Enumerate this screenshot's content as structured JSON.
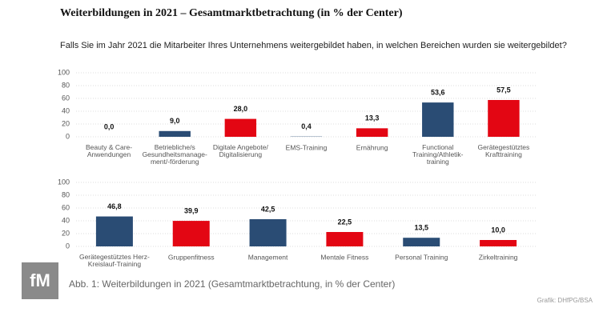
{
  "header": {
    "title": "Weiterbildungen in 2021 – Gesamtmarktbetrachtung (in % der Center)",
    "subtitle": "Falls Sie im Jahr 2021 die Mitarbeiter Ihres Unternehmens weitergebildet haben, in welchen Bereichen wurden sie weitergebildet?"
  },
  "footer": {
    "logo": "fM",
    "caption": "Abb. 1: Weiterbildungen in 2021 (Gesamtmarktbetrachtung, in % der Center)",
    "credit": "Grafik: DHfPG/BSA"
  },
  "chart_data": [
    {
      "type": "bar",
      "categories": [
        "Beauty & Care-\nAnwendungen",
        "Betriebliche/s\nGesundheitsmanage-\nment/-förderung",
        "Digitale Angebote/\nDigitalisierung",
        "EMS-Training",
        "Ernährung",
        "Functional\nTraining/Athletik-\ntraining",
        "Gerätegestütztes\nKrafttraining"
      ],
      "values": [
        0.0,
        9.0,
        28.0,
        0.4,
        13.3,
        53.6,
        57.5
      ],
      "value_labels": [
        "0,0",
        "9,0",
        "28,0",
        "0,4",
        "13,3",
        "53,6",
        "57,5"
      ],
      "colors": [
        "#2a4c74",
        "#2a4c74",
        "#e30613",
        "#2a4c74",
        "#e30613",
        "#2a4c74",
        "#e30613"
      ],
      "ylim": [
        0,
        100
      ],
      "yticks": [
        0,
        20,
        40,
        60,
        80,
        100
      ],
      "grid": true
    },
    {
      "type": "bar",
      "categories": [
        "Gerätegestütztes Herz-\nKreislauf-Training",
        "Gruppenfitness",
        "Management",
        "Mentale Fitness",
        "Personal Training",
        "Zirkeltraining"
      ],
      "values": [
        46.8,
        39.9,
        42.5,
        22.5,
        13.5,
        10.0
      ],
      "value_labels": [
        "46,8",
        "39,9",
        "42,5",
        "22,5",
        "13,5",
        "10,0"
      ],
      "colors": [
        "#2a4c74",
        "#e30613",
        "#2a4c74",
        "#e30613",
        "#2a4c74",
        "#e30613"
      ],
      "ylim": [
        0,
        100
      ],
      "yticks": [
        0,
        20,
        40,
        60,
        80,
        100
      ],
      "grid": true
    }
  ]
}
